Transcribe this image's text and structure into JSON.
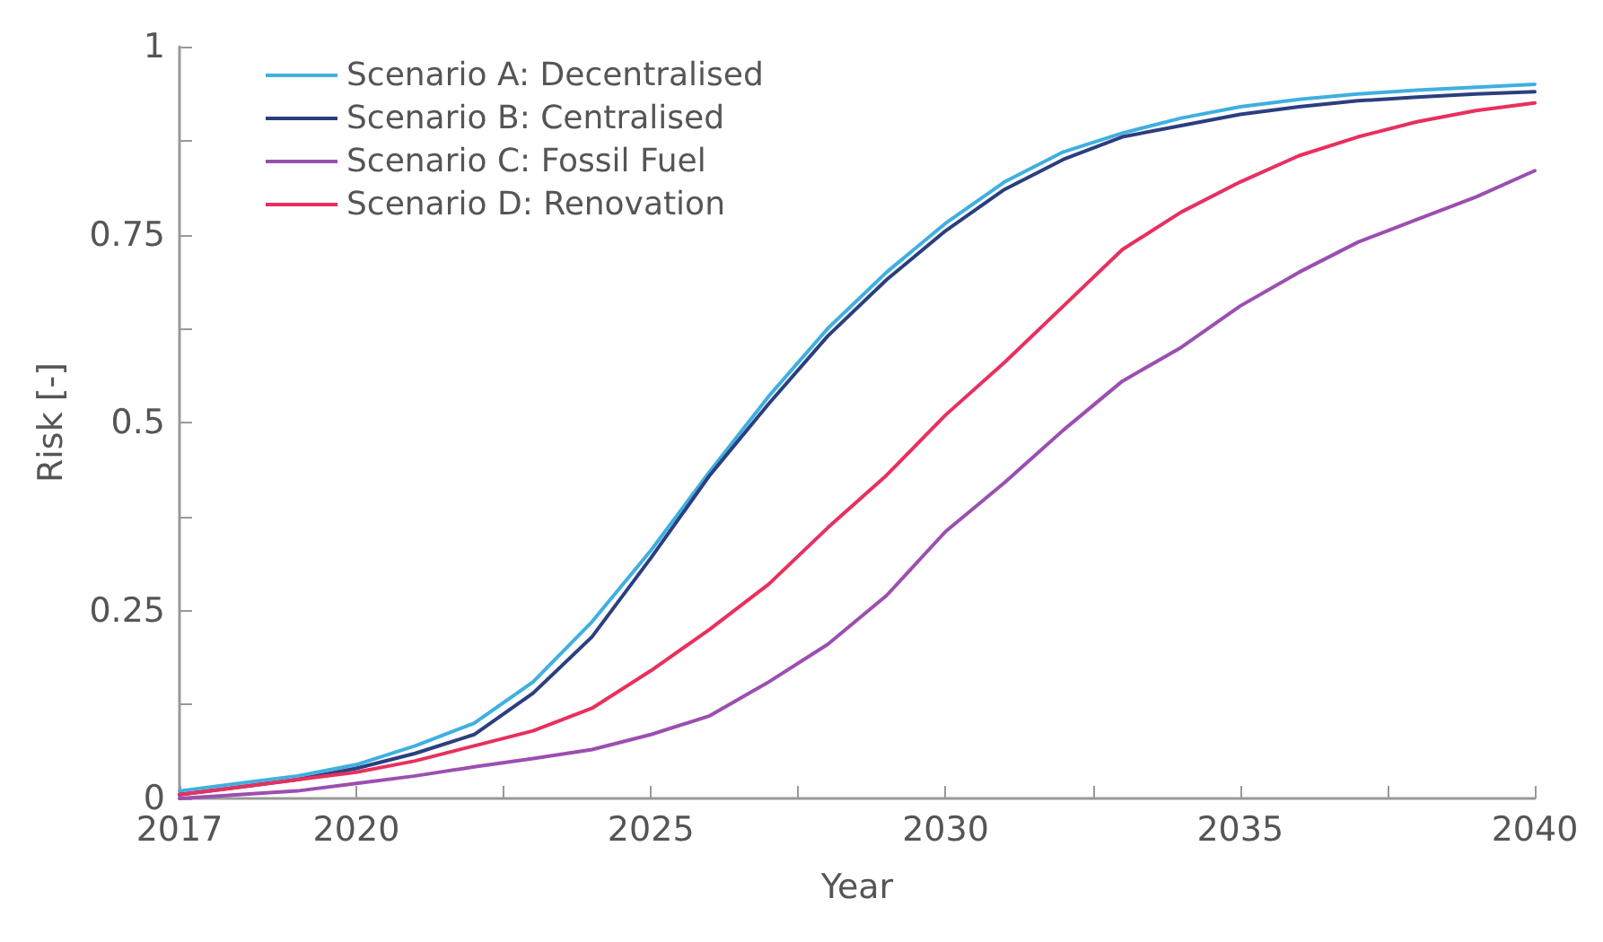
{
  "chart_data": {
    "type": "line",
    "xlabel": "Year",
    "ylabel": "Risk [-]",
    "x": [
      2017,
      2018,
      2019,
      2020,
      2021,
      2022,
      2023,
      2024,
      2025,
      2026,
      2027,
      2028,
      2029,
      2030,
      2031,
      2032,
      2033,
      2034,
      2035,
      2036,
      2037,
      2038,
      2039,
      2040
    ],
    "series": [
      {
        "name": "Scenario A: Decentralised",
        "color": "#3fb0e0",
        "values": [
          0.01,
          0.02,
          0.03,
          0.045,
          0.07,
          0.1,
          0.155,
          0.235,
          0.33,
          0.435,
          0.535,
          0.625,
          0.7,
          0.765,
          0.82,
          0.86,
          0.885,
          0.905,
          0.92,
          0.93,
          0.937,
          0.942,
          0.946,
          0.95
        ]
      },
      {
        "name": "Scenario B: Centralised",
        "color": "#2b3f7f",
        "values": [
          0.005,
          0.015,
          0.025,
          0.04,
          0.06,
          0.085,
          0.14,
          0.215,
          0.32,
          0.43,
          0.525,
          0.615,
          0.69,
          0.755,
          0.81,
          0.85,
          0.88,
          0.895,
          0.91,
          0.92,
          0.928,
          0.933,
          0.937,
          0.94
        ]
      },
      {
        "name": "Scenario C: Fossil Fuel",
        "color": "#9b4fb0",
        "values": [
          0.0,
          0.005,
          0.01,
          0.02,
          0.03,
          0.042,
          0.053,
          0.065,
          0.085,
          0.11,
          0.155,
          0.205,
          0.27,
          0.355,
          0.42,
          0.49,
          0.555,
          0.6,
          0.655,
          0.7,
          0.74,
          0.77,
          0.8,
          0.835
        ]
      },
      {
        "name": "Scenario D: Renovation",
        "color": "#e8305f",
        "values": [
          0.005,
          0.015,
          0.025,
          0.035,
          0.05,
          0.07,
          0.09,
          0.12,
          0.17,
          0.225,
          0.285,
          0.36,
          0.43,
          0.51,
          0.58,
          0.655,
          0.73,
          0.78,
          0.82,
          0.855,
          0.88,
          0.9,
          0.915,
          0.925
        ]
      }
    ],
    "xlim": [
      2017,
      2040
    ],
    "xticks": [
      2017,
      2020,
      {
        "value": 2022.5,
        "label": null
      },
      2025,
      {
        "value": 2027.5,
        "label": null
      },
      2030,
      {
        "value": 2032.5,
        "label": null
      },
      2035,
      {
        "value": 2037.5,
        "label": null
      },
      2040
    ],
    "ylim": [
      0,
      1
    ],
    "yticks": [
      0,
      {
        "value": 0.125,
        "label": null
      },
      0.25,
      {
        "value": 0.375,
        "label": null
      },
      0.5,
      {
        "value": 0.625,
        "label": null
      },
      0.75,
      {
        "value": 0.875,
        "label": null
      },
      1
    ],
    "grid": false,
    "legend": "top left",
    "marker": "none",
    "line_style": "solid"
  }
}
